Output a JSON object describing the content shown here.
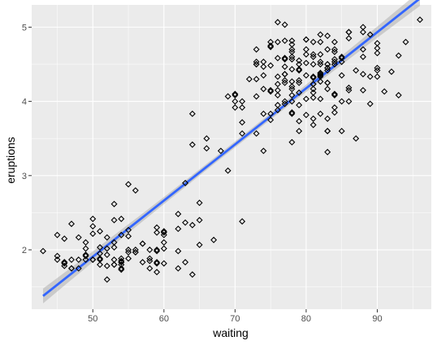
{
  "chart_data": {
    "type": "scatter",
    "xlabel": "waiting",
    "ylabel": "eruptions",
    "xlim": [
      41.4,
      97.6
    ],
    "ylim": [
      1.2,
      5.3
    ],
    "x_ticks": [
      50,
      60,
      70,
      80,
      90
    ],
    "y_ticks": [
      2,
      3,
      4,
      5
    ],
    "x_tick_labels": [
      "50",
      "60",
      "70",
      "80",
      "90"
    ],
    "y_tick_labels": [
      "2",
      "3",
      "4",
      "5"
    ],
    "grid": true,
    "legend": "none",
    "colors": {
      "panel": "#ebebeb",
      "grid_major": "#ffffff",
      "point_stroke": "#000000",
      "fit_line": "#3366ff",
      "ci_band": "#999999"
    },
    "points": {
      "x": [
        79,
        54,
        74,
        62,
        85,
        55,
        88,
        85,
        51,
        85,
        54,
        84,
        78,
        47,
        83,
        52,
        62,
        84,
        52,
        79,
        51,
        47,
        78,
        69,
        74,
        83,
        55,
        76,
        78,
        79,
        73,
        77,
        66,
        80,
        74,
        52,
        48,
        80,
        59,
        90,
        80,
        58,
        84,
        58,
        73,
        83,
        64,
        53,
        82,
        59,
        75,
        90,
        54,
        80,
        54,
        83,
        71,
        64,
        77,
        81,
        59,
        84,
        48,
        82,
        60,
        92,
        78,
        78,
        65,
        73,
        82,
        56,
        79,
        71,
        62,
        76,
        60,
        78,
        76,
        83,
        75,
        82,
        70,
        65,
        73,
        88,
        76,
        80,
        48,
        86,
        60,
        90,
        50,
        78,
        63,
        72,
        84,
        75,
        51,
        82,
        62,
        88,
        49,
        83,
        81,
        47,
        84,
        52,
        86,
        81,
        75,
        59,
        89,
        79,
        59,
        81,
        50,
        85,
        59,
        87,
        53,
        69,
        77,
        56,
        88,
        81,
        45,
        82,
        55,
        90,
        45,
        83,
        56,
        89,
        46,
        82,
        51,
        86,
        53,
        79,
        81,
        60,
        82,
        77,
        76,
        59,
        80,
        49,
        96,
        53,
        77,
        77,
        65,
        81,
        71,
        70,
        81,
        93,
        53,
        89,
        45,
        86,
        58,
        78,
        66,
        76,
        63,
        88,
        52,
        93,
        49,
        57,
        77,
        68,
        81,
        81,
        73,
        50,
        85,
        74,
        55,
        77,
        83,
        83,
        51,
        78,
        84,
        46,
        83,
        55,
        81,
        57,
        76,
        84,
        77,
        81,
        87,
        77,
        51,
        78,
        60,
        82,
        91,
        53,
        78,
        46,
        77,
        84,
        49,
        83,
        71,
        80,
        49,
        75,
        64,
        76,
        53,
        94,
        55,
        76,
        50,
        82,
        54,
        75,
        78,
        79,
        78,
        78,
        70,
        79,
        70,
        54,
        86,
        50,
        90,
        54,
        54,
        77,
        79,
        64,
        75,
        47,
        86,
        63,
        85,
        82,
        57,
        82,
        67,
        74,
        54,
        83,
        73,
        73,
        88,
        80,
        71,
        83,
        56,
        79,
        78,
        84,
        58,
        83,
        43,
        60,
        75,
        81,
        46,
        90,
        46,
        74
      ],
      "y": [
        3.6,
        1.8,
        3.333,
        2.283,
        4.533,
        2.883,
        4.7,
        3.6,
        1.95,
        4.35,
        1.833,
        3.917,
        4.2,
        1.75,
        4.7,
        2.167,
        1.75,
        4.8,
        1.6,
        4.25,
        1.8,
        1.75,
        3.45,
        3.067,
        4.533,
        3.6,
        1.967,
        4.083,
        3.85,
        4.433,
        4.3,
        4.467,
        3.367,
        4.033,
        3.833,
        2.017,
        1.867,
        4.833,
        1.833,
        4.783,
        4.35,
        1.883,
        4.567,
        1.75,
        4.533,
        3.317,
        3.833,
        2.1,
        4.633,
        2,
        4.8,
        4.716,
        1.833,
        4.833,
        1.733,
        4.883,
        3.717,
        1.667,
        4.567,
        4.317,
        2.233,
        4.5,
        1.75,
        4.8,
        1.817,
        4.4,
        4.167,
        4.7,
        2.067,
        4.7,
        4.033,
        1.967,
        4.5,
        4,
        1.983,
        5.067,
        2.017,
        4.567,
        3.883,
        3.6,
        4.133,
        4.333,
        4.1,
        2.633,
        4.067,
        4.933,
        3.95,
        4.517,
        2.167,
        4,
        2.2,
        4.333,
        1.867,
        4.817,
        1.833,
        4.3,
        4.667,
        3.75,
        1.867,
        4.9,
        2.483,
        4.367,
        2.1,
        4.5,
        4.05,
        1.867,
        4.7,
        1.783,
        4.85,
        3.683,
        4.733,
        2.3,
        4.9,
        4.417,
        1.7,
        4.633,
        2.317,
        4.6,
        1.817,
        4.417,
        2.617,
        4.067,
        4.25,
        1.967,
        4.6,
        3.767,
        1.917,
        4.5,
        2.267,
        4.65,
        1.867,
        4.167,
        2.8,
        4.333,
        1.833,
        4.383,
        1.883,
        4.933,
        2.033,
        3.733,
        4.233,
        2.233,
        4.533,
        4.817,
        4.333,
        1.983,
        4.633,
        2.017,
        5.1,
        1.8,
        5.033,
        4,
        2.4,
        4.6,
        3.567,
        4,
        4.5,
        4.083,
        1.8,
        3.967,
        2.2,
        4.15,
        2,
        3.833,
        3.5,
        4.583,
        2.367,
        5,
        1.933,
        4.617,
        1.917,
        2.083,
        4.583,
        3.333,
        4.167,
        4.333,
        4.5,
        2.417,
        4,
        4.167,
        1.883,
        4.583,
        4.25,
        3.767,
        2.033,
        4.433,
        4.083,
        1.833,
        4.417,
        2.183,
        4.8,
        1.833,
        4.8,
        4.1,
        3.966,
        4.233,
        3.5,
        4.366,
        2.25,
        4.667,
        2.1,
        4.35,
        4.133,
        1.867,
        4.6,
        1.783,
        4.367,
        3.85,
        1.933,
        4.5,
        2.383,
        4.7,
        1.867,
        3.833,
        3.417,
        4.233,
        2.4,
        4.8,
        2,
        4.15,
        1.867,
        4.267,
        1.75,
        4.483,
        4,
        4.117,
        4.083,
        4.267,
        3.917,
        4.55,
        4.083,
        2.417,
        4.183,
        2.217,
        4.45,
        1.883,
        1.85,
        4.283,
        3.95,
        2.333,
        4.15,
        2.35,
        4.933,
        2.9,
        4.583,
        3.833,
        2.083,
        4.367,
        2.133,
        4.35,
        2.2,
        4.45,
        3.567,
        4.5,
        4.15,
        3.817,
        3.917,
        4.45,
        2,
        4.283,
        4.767,
        4.533,
        1.85,
        4.25,
        1.983,
        2.25,
        4.75,
        4.117,
        2.15,
        4.417,
        1.817,
        4.467
      ]
    },
    "fit": {
      "intercept": -1.874,
      "slope": 0.07563,
      "ci_halfwidth_at_ends": 0.1,
      "ci_halfwidth_at_center": 0.04
    }
  }
}
